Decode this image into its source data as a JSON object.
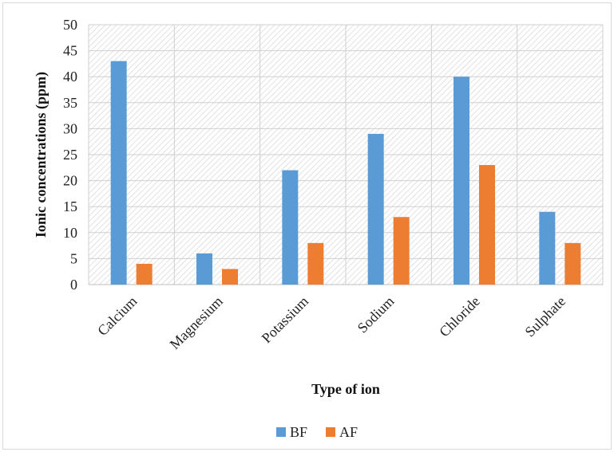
{
  "chart_data": {
    "type": "bar",
    "categories": [
      "Calcium",
      "Magnesium",
      "Potassium",
      "Sodium",
      "Chloride",
      "Sulphate"
    ],
    "series": [
      {
        "name": "BF",
        "values": [
          43,
          6,
          22,
          29,
          40,
          14
        ]
      },
      {
        "name": "AF",
        "values": [
          4,
          3,
          8,
          13,
          23,
          8
        ]
      }
    ],
    "colors": {
      "BF": "#5b9bd5",
      "AF": "#ed7d31"
    },
    "title": "",
    "xlabel": "Type of ion",
    "ylabel": "Ionic concentrations (ppm)",
    "ylim": [
      0,
      50
    ],
    "yticks": [
      0,
      5,
      10,
      15,
      20,
      25,
      30,
      35,
      40,
      45,
      50
    ],
    "grid": true,
    "plot_background": "hatched",
    "legend_position": "bottom"
  }
}
